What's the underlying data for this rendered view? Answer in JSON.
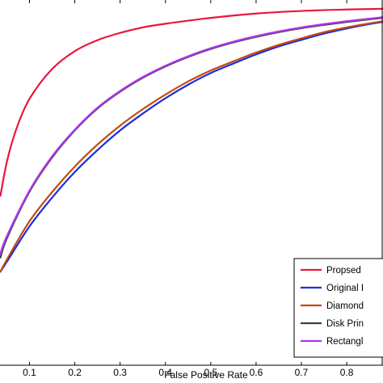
{
  "chart_data": {
    "type": "line",
    "xlabel": "False Positive Rate",
    "ylabel": "",
    "title": "",
    "xlim": [
      0.035,
      0.88
    ],
    "ylim": [
      0,
      1
    ],
    "x_ticks": [
      0.1,
      0.2,
      0.3,
      0.4,
      0.5,
      0.6,
      0.7,
      0.8
    ],
    "x_tick_labels": [
      "0.1",
      "0.2",
      "0.3",
      "0.4",
      "0.5",
      "0.6",
      "0.7",
      "0.8"
    ],
    "grid": false,
    "legend_position": "bottom-right",
    "series": [
      {
        "name": "Propsed",
        "color": "#e8173c",
        "x": [
          0.036,
          0.05,
          0.07,
          0.1,
          0.15,
          0.2,
          0.25,
          0.3,
          0.35,
          0.4,
          0.5,
          0.6,
          0.7,
          0.8,
          0.88
        ],
        "y": [
          0.464,
          0.556,
          0.643,
          0.729,
          0.811,
          0.86,
          0.89,
          0.91,
          0.925,
          0.935,
          0.951,
          0.963,
          0.97,
          0.974,
          0.976
        ]
      },
      {
        "name": "Original I",
        "color": "#1a2ee0",
        "x": [
          0.036,
          0.05,
          0.1,
          0.15,
          0.2,
          0.25,
          0.3,
          0.35,
          0.4,
          0.45,
          0.5,
          0.55,
          0.6,
          0.65,
          0.7,
          0.75,
          0.8,
          0.85,
          0.88
        ],
        "y": [
          0.256,
          0.283,
          0.38,
          0.459,
          0.529,
          0.589,
          0.643,
          0.689,
          0.731,
          0.768,
          0.8,
          0.826,
          0.851,
          0.873,
          0.891,
          0.908,
          0.922,
          0.934,
          0.94
        ]
      },
      {
        "name": "Diamond",
        "color": "#c44a10",
        "x": [
          0.036,
          0.05,
          0.1,
          0.15,
          0.2,
          0.25,
          0.3,
          0.35,
          0.4,
          0.45,
          0.5,
          0.55,
          0.6,
          0.65,
          0.7,
          0.75,
          0.8,
          0.85,
          0.88
        ],
        "y": [
          0.256,
          0.289,
          0.394,
          0.474,
          0.544,
          0.604,
          0.656,
          0.701,
          0.741,
          0.777,
          0.807,
          0.832,
          0.856,
          0.877,
          0.895,
          0.912,
          0.925,
          0.936,
          0.942
        ]
      },
      {
        "name": "Disk Prin",
        "color": "#404040",
        "x": [
          0.036,
          0.05,
          0.1,
          0.15,
          0.2,
          0.25,
          0.3,
          0.35,
          0.4,
          0.45,
          0.5,
          0.55,
          0.6,
          0.65,
          0.7,
          0.75,
          0.8,
          0.85,
          0.88
        ],
        "y": [
          0.295,
          0.347,
          0.475,
          0.569,
          0.643,
          0.703,
          0.749,
          0.787,
          0.818,
          0.844,
          0.866,
          0.884,
          0.899,
          0.912,
          0.923,
          0.932,
          0.94,
          0.947,
          0.951
        ]
      },
      {
        "name": "Rectangl",
        "color": "#b333f0",
        "x": [
          0.036,
          0.05,
          0.1,
          0.15,
          0.2,
          0.25,
          0.3,
          0.35,
          0.4,
          0.45,
          0.5,
          0.55,
          0.6,
          0.65,
          0.7,
          0.75,
          0.8,
          0.85,
          0.88
        ],
        "y": [
          0.306,
          0.353,
          0.478,
          0.572,
          0.645,
          0.705,
          0.751,
          0.789,
          0.82,
          0.846,
          0.868,
          0.886,
          0.901,
          0.914,
          0.925,
          0.934,
          0.942,
          0.949,
          0.953
        ]
      }
    ]
  }
}
